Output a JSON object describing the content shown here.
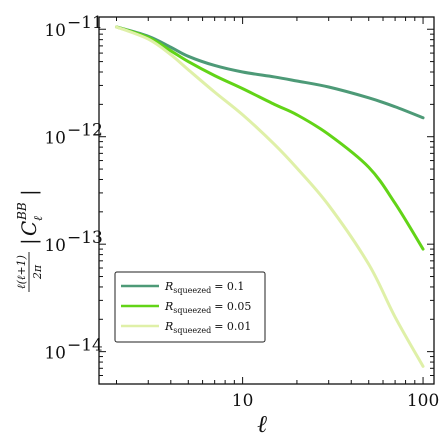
{
  "chart_data": {
    "type": "line",
    "xscale": "log",
    "yscale": "log",
    "xlim": [
      1.6,
      115
    ],
    "ylim": [
      5e-15,
      1.3e-11
    ],
    "xticks": [
      10,
      100
    ],
    "xtick_labels": [
      "10",
      "100"
    ],
    "yticks": [
      1e-14,
      1e-13,
      1e-12,
      1e-11
    ],
    "ytick_labels": [
      "10",
      "10",
      "10",
      "10"
    ],
    "ytick_exponents": [
      "−14",
      "−13",
      "−12",
      "−11"
    ],
    "xlabel": "ℓ",
    "ylabel": {
      "prefix_numerator": "ℓ(ℓ+1)",
      "prefix_denominator": "2π",
      "bar_left": "|",
      "symbol": "C",
      "subscript": "ℓ",
      "superscript": "BB",
      "bar_right": "|"
    },
    "grid": false,
    "legend_position": "lower-left",
    "series": [
      {
        "name": "R_squeezed = 0.1",
        "label_symbol": "R",
        "label_subscript": "squeezed",
        "label_value": "= 0.1",
        "color": "#4d9a77",
        "x": [
          2,
          3,
          4,
          5,
          7,
          10,
          15,
          20,
          30,
          50,
          70,
          100
        ],
        "y": [
          1.05e-11,
          8.6e-12,
          6.8e-12,
          5.6e-12,
          4.6e-12,
          4e-12,
          3.6e-12,
          3.3e-12,
          2.9e-12,
          2.3e-12,
          1.9e-12,
          1.5e-12
        ]
      },
      {
        "name": "R_squeezed = 0.05",
        "label_symbol": "R",
        "label_subscript": "squeezed",
        "label_value": "= 0.05",
        "color": "#62d417",
        "x": [
          2,
          3,
          4,
          5,
          7,
          10,
          15,
          20,
          30,
          50,
          70,
          100
        ],
        "y": [
          1.05e-11,
          8.4e-12,
          6.3e-12,
          5e-12,
          3.7e-12,
          2.8e-12,
          2e-12,
          1.6e-12,
          1.05e-12,
          5.2e-13,
          2.4e-13,
          9e-14
        ]
      },
      {
        "name": "R_squeezed = 0.01",
        "label_symbol": "R",
        "label_subscript": "squeezed",
        "label_value": "= 0.01",
        "color": "#dff0a8",
        "x": [
          2,
          3,
          4,
          5,
          7,
          10,
          15,
          20,
          30,
          50,
          70,
          100
        ],
        "y": [
          1.05e-11,
          8.1e-12,
          5.8e-12,
          4.2e-12,
          2.6e-12,
          1.6e-12,
          8.5e-13,
          5.1e-13,
          2.3e-13,
          6.5e-14,
          2.1e-14,
          7.3e-15
        ]
      }
    ]
  }
}
